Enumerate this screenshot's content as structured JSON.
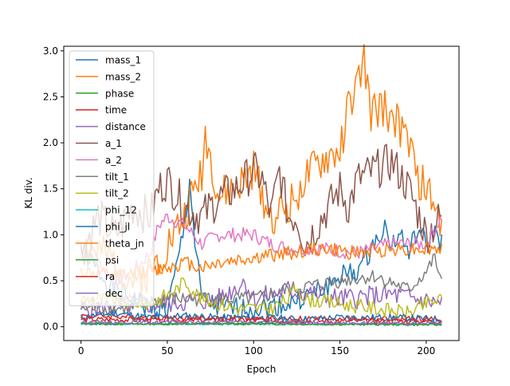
{
  "chart_data": {
    "type": "line",
    "xlabel": "Epoch",
    "ylabel": "KL div.",
    "xlim": [
      -10,
      219
    ],
    "ylim": [
      -0.15,
      3.05
    ],
    "xticks": [
      0,
      50,
      100,
      150,
      200
    ],
    "yticks": [
      0.0,
      0.5,
      1.0,
      1.5,
      2.0,
      2.5,
      3.0
    ],
    "x_tick_labels": [
      "0",
      "50",
      "100",
      "150",
      "200"
    ],
    "y_tick_labels": [
      "0.0",
      "0.5",
      "1.0",
      "1.5",
      "2.0",
      "2.5",
      "3.0"
    ],
    "grid": false,
    "legend_position": "top-left",
    "n_points": 210,
    "series": [
      {
        "name": "mass_1",
        "color": "#1f77b4",
        "keypoints": [
          [
            0,
            0.85
          ],
          [
            10,
            0.6
          ],
          [
            20,
            0.4
          ],
          [
            30,
            0.3
          ],
          [
            40,
            0.2
          ],
          [
            50,
            0.18
          ],
          [
            55,
            0.6
          ],
          [
            60,
            1.1
          ],
          [
            63,
            1.6
          ],
          [
            66,
            0.9
          ],
          [
            70,
            0.3
          ],
          [
            80,
            0.2
          ],
          [
            100,
            0.2
          ],
          [
            120,
            0.25
          ],
          [
            140,
            0.4
          ],
          [
            150,
            0.55
          ],
          [
            160,
            0.6
          ],
          [
            170,
            0.9
          ],
          [
            175,
            1.1
          ],
          [
            180,
            0.9
          ],
          [
            185,
            1.0
          ],
          [
            190,
            0.8
          ],
          [
            195,
            1.05
          ],
          [
            200,
            0.9
          ],
          [
            205,
            1.05
          ],
          [
            209,
            0.9
          ]
        ],
        "noise": 0.12,
        "seed": 1
      },
      {
        "name": "mass_2",
        "color": "#ff7f0e",
        "keypoints": [
          [
            0,
            0.9
          ],
          [
            10,
            0.8
          ],
          [
            20,
            0.7
          ],
          [
            30,
            0.5
          ],
          [
            40,
            0.6
          ],
          [
            50,
            0.9
          ],
          [
            60,
            1.2
          ],
          [
            70,
            1.7
          ],
          [
            72,
            2.1
          ],
          [
            80,
            1.4
          ],
          [
            90,
            1.5
          ],
          [
            100,
            1.7
          ],
          [
            110,
            1.2
          ],
          [
            120,
            1.3
          ],
          [
            130,
            1.6
          ],
          [
            140,
            1.8
          ],
          [
            150,
            1.9
          ],
          [
            155,
            2.4
          ],
          [
            160,
            2.6
          ],
          [
            164,
            2.9
          ],
          [
            168,
            2.3
          ],
          [
            175,
            2.4
          ],
          [
            180,
            2.3
          ],
          [
            190,
            2.0
          ],
          [
            195,
            1.6
          ],
          [
            200,
            1.5
          ],
          [
            205,
            1.3
          ],
          [
            209,
            1.1
          ]
        ],
        "noise": 0.22,
        "seed": 2
      },
      {
        "name": "phase",
        "color": "#2ca02c",
        "keypoints": [
          [
            0,
            0.04
          ],
          [
            50,
            0.03
          ],
          [
            100,
            0.04
          ],
          [
            150,
            0.03
          ],
          [
            209,
            0.03
          ]
        ],
        "noise": 0.01,
        "seed": 3
      },
      {
        "name": "time",
        "color": "#d62728",
        "keypoints": [
          [
            0,
            0.12
          ],
          [
            50,
            0.1
          ],
          [
            100,
            0.09
          ],
          [
            150,
            0.09
          ],
          [
            209,
            0.08
          ]
        ],
        "noise": 0.03,
        "seed": 4
      },
      {
        "name": "distance",
        "color": "#9467bd",
        "keypoints": [
          [
            0,
            0.2
          ],
          [
            40,
            0.25
          ],
          [
            80,
            0.3
          ],
          [
            95,
            0.5
          ],
          [
            100,
            0.3
          ],
          [
            120,
            0.4
          ],
          [
            150,
            0.3
          ],
          [
            180,
            0.35
          ],
          [
            209,
            0.25
          ]
        ],
        "noise": 0.12,
        "seed": 5
      },
      {
        "name": "a_1",
        "color": "#8c564b",
        "keypoints": [
          [
            0,
            0.8
          ],
          [
            10,
            1.2
          ],
          [
            20,
            1.0
          ],
          [
            30,
            1.3
          ],
          [
            40,
            1.2
          ],
          [
            45,
            1.5
          ],
          [
            50,
            1.6
          ],
          [
            60,
            1.3
          ],
          [
            70,
            1.2
          ],
          [
            80,
            1.4
          ],
          [
            90,
            1.5
          ],
          [
            100,
            1.7
          ],
          [
            105,
            1.6
          ],
          [
            110,
            1.2
          ],
          [
            115,
            1.7
          ],
          [
            120,
            1.2
          ],
          [
            125,
            1.2
          ],
          [
            130,
            0.9
          ],
          [
            140,
            1.2
          ],
          [
            150,
            1.5
          ],
          [
            155,
            1.3
          ],
          [
            160,
            1.6
          ],
          [
            170,
            1.7
          ],
          [
            180,
            1.8
          ],
          [
            190,
            1.5
          ],
          [
            200,
            1.0
          ],
          [
            209,
            1.2
          ]
        ],
        "noise": 0.22,
        "seed": 6
      },
      {
        "name": "a_2",
        "color": "#e377c2",
        "keypoints": [
          [
            0,
            0.8
          ],
          [
            10,
            0.7
          ],
          [
            20,
            0.5
          ],
          [
            30,
            0.6
          ],
          [
            40,
            0.8
          ],
          [
            45,
            1.1
          ],
          [
            50,
            1.2
          ],
          [
            60,
            1.1
          ],
          [
            70,
            0.9
          ],
          [
            80,
            1.0
          ],
          [
            90,
            1.0
          ],
          [
            100,
            1.0
          ],
          [
            110,
            0.9
          ],
          [
            120,
            0.85
          ],
          [
            140,
            0.85
          ],
          [
            160,
            0.8
          ],
          [
            180,
            0.9
          ],
          [
            190,
            0.9
          ],
          [
            200,
            0.9
          ],
          [
            209,
            1.2
          ]
        ],
        "noise": 0.08,
        "seed": 7
      },
      {
        "name": "tilt_1",
        "color": "#7f7f7f",
        "keypoints": [
          [
            0,
            0.2
          ],
          [
            30,
            0.2
          ],
          [
            50,
            0.3
          ],
          [
            70,
            0.3
          ],
          [
            100,
            0.3
          ],
          [
            120,
            0.4
          ],
          [
            150,
            0.5
          ],
          [
            170,
            0.55
          ],
          [
            190,
            0.4
          ],
          [
            200,
            0.6
          ],
          [
            205,
            0.75
          ],
          [
            209,
            0.45
          ]
        ],
        "noise": 0.08,
        "seed": 8
      },
      {
        "name": "tilt_2",
        "color": "#bcbd22",
        "keypoints": [
          [
            0,
            0.3
          ],
          [
            20,
            0.3
          ],
          [
            40,
            0.25
          ],
          [
            55,
            0.4
          ],
          [
            60,
            0.5
          ],
          [
            70,
            0.3
          ],
          [
            90,
            0.2
          ],
          [
            110,
            0.2
          ],
          [
            120,
            0.3
          ],
          [
            125,
            0.45
          ],
          [
            130,
            0.3
          ],
          [
            150,
            0.25
          ],
          [
            170,
            0.2
          ],
          [
            190,
            0.15
          ],
          [
            200,
            0.25
          ],
          [
            209,
            0.3
          ]
        ],
        "noise": 0.08,
        "seed": 9
      },
      {
        "name": "phi_12",
        "color": "#17becf",
        "keypoints": [
          [
            0,
            0.03
          ],
          [
            100,
            0.03
          ],
          [
            209,
            0.03
          ]
        ],
        "noise": 0.01,
        "seed": 10
      },
      {
        "name": "phi_jl",
        "color": "#1f77b4",
        "keypoints": [
          [
            0,
            0.1
          ],
          [
            20,
            0.15
          ],
          [
            40,
            0.1
          ],
          [
            60,
            0.12
          ],
          [
            80,
            0.1
          ],
          [
            100,
            0.1
          ],
          [
            130,
            0.08
          ],
          [
            150,
            0.1
          ],
          [
            180,
            0.1
          ],
          [
            209,
            0.08
          ]
        ],
        "noise": 0.04,
        "seed": 11
      },
      {
        "name": "theta_jn",
        "color": "#ff7f0e",
        "keypoints": [
          [
            0,
            0.6
          ],
          [
            20,
            0.55
          ],
          [
            40,
            0.6
          ],
          [
            60,
            0.7
          ],
          [
            70,
            0.65
          ],
          [
            80,
            0.7
          ],
          [
            100,
            0.75
          ],
          [
            120,
            0.8
          ],
          [
            140,
            0.85
          ],
          [
            160,
            0.8
          ],
          [
            180,
            0.85
          ],
          [
            200,
            0.85
          ],
          [
            209,
            0.85
          ]
        ],
        "noise": 0.08,
        "seed": 12
      },
      {
        "name": "psi",
        "color": "#2ca02c",
        "keypoints": [
          [
            0,
            0.03
          ],
          [
            100,
            0.03
          ],
          [
            209,
            0.02
          ]
        ],
        "noise": 0.01,
        "seed": 13
      },
      {
        "name": "ra",
        "color": "#d62728",
        "keypoints": [
          [
            0,
            0.08
          ],
          [
            50,
            0.07
          ],
          [
            100,
            0.07
          ],
          [
            150,
            0.06
          ],
          [
            209,
            0.06
          ]
        ],
        "noise": 0.03,
        "seed": 14
      },
      {
        "name": "dec",
        "color": "#9467bd",
        "keypoints": [
          [
            0,
            0.05
          ],
          [
            50,
            0.05
          ],
          [
            100,
            0.05
          ],
          [
            150,
            0.04
          ],
          [
            209,
            0.04
          ]
        ],
        "noise": 0.02,
        "seed": 15
      }
    ]
  }
}
